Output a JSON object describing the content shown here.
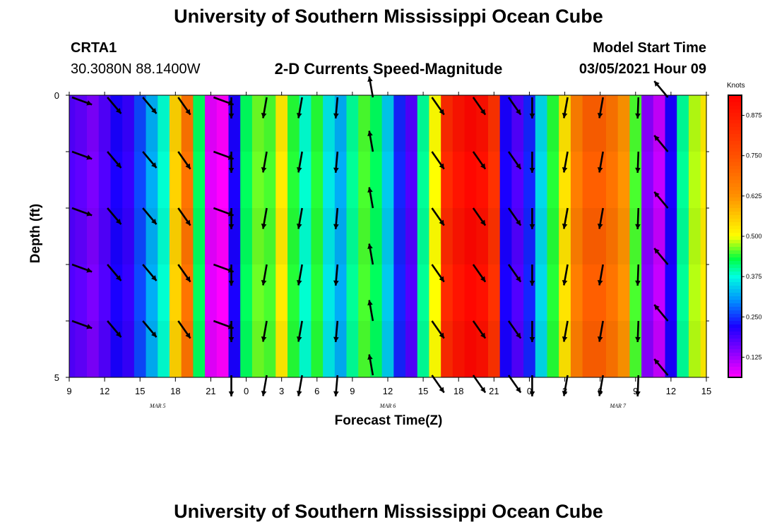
{
  "header": {
    "title_top": "University of Southern Mississippi Ocean Cube",
    "title_bottom": "University of Southern Mississippi Ocean Cube",
    "station_id": "CRTA1",
    "station_coords": "30.3080N 88.1400W",
    "chart_title": "2-D Currents Speed-Magnitude",
    "model_start_label": "Model Start Time",
    "model_start_value": "03/05/2021 Hour 09"
  },
  "chart_data": {
    "type": "heatmap",
    "title": "2-D Currents Speed-Magnitude",
    "xlabel": "Forecast Time(Z)",
    "ylabel": "Depth (ft)",
    "ylim": [
      0,
      5
    ],
    "y_ticks": [
      "0",
      "5"
    ],
    "x_tick_labels": [
      "9",
      "12",
      "15",
      "18",
      "21",
      "0",
      "3",
      "6",
      "9",
      "12",
      "15",
      "18",
      "21",
      "0",
      "3",
      "6",
      "9",
      "12",
      "15"
    ],
    "x_range_hours": [
      0,
      54
    ],
    "date_labels": [
      {
        "text": "MAR  5",
        "hour": 7.5
      },
      {
        "text": "MAR  6",
        "hour": 27
      },
      {
        "text": "MAR  7",
        "hour": 46.5
      }
    ],
    "speed_by_hour": [
      0.18,
      0.17,
      0.15,
      0.18,
      0.22,
      0.2,
      0.26,
      0.32,
      0.38,
      0.55,
      0.68,
      0.42,
      0.08,
      0.06,
      0.22,
      0.42,
      0.46,
      0.45,
      0.52,
      0.44,
      0.38,
      0.44,
      0.36,
      0.32,
      0.4,
      0.45,
      0.42,
      0.34,
      0.24,
      0.18,
      0.4,
      0.5,
      0.84,
      0.89,
      0.92,
      0.9,
      0.82,
      0.22,
      0.18,
      0.24,
      0.35,
      0.44,
      0.53,
      0.66,
      0.72,
      0.72,
      0.68,
      0.62,
      0.45,
      0.14,
      0.1,
      0.22,
      0.4,
      0.48,
      0.52
    ],
    "arrow_rows_depth": [
      0,
      1,
      2,
      3,
      4,
      5
    ],
    "arrow_directions_deg": [
      {
        "hour": 0,
        "dir": 250
      },
      {
        "hour": 3,
        "dir": 220
      },
      {
        "hour": 6,
        "dir": 220
      },
      {
        "hour": 9,
        "dir": 215
      },
      {
        "hour": 12,
        "dir": 250
      },
      {
        "hour": 13.5,
        "dir": 180
      },
      {
        "hour": 16.5,
        "dir": 170
      },
      {
        "hour": 19.5,
        "dir": 170
      },
      {
        "hour": 22.5,
        "dir": 175
      },
      {
        "hour": 25.5,
        "dir": 10
      },
      {
        "hour": 30.5,
        "dir": 215
      },
      {
        "hour": 34,
        "dir": 215
      },
      {
        "hour": 37,
        "dir": 215
      },
      {
        "hour": 39,
        "dir": 180
      },
      {
        "hour": 42,
        "dir": 170
      },
      {
        "hour": 45,
        "dir": 170
      },
      {
        "hour": 48,
        "dir": 178
      },
      {
        "hour": 50.5,
        "dir": 40
      }
    ],
    "arrow_depth_exceptions": {
      "top_row_short_hours": [
        13.5,
        16.5,
        19.5,
        22.5,
        39,
        42,
        45,
        48
      ]
    }
  },
  "colorbar": {
    "unit": "Knots",
    "min": 0.0625,
    "max": 0.9375,
    "tick_values": [
      0.125,
      0.25,
      0.375,
      0.5,
      0.625,
      0.75,
      0.875
    ],
    "tick_labels": [
      "0.125",
      "0.250",
      "0.375",
      "0.500",
      "0.625",
      "0.750",
      "0.875"
    ],
    "stops": [
      {
        "v": 0.0625,
        "c": "#ff00ff"
      },
      {
        "v": 0.14,
        "c": "#8a00ff"
      },
      {
        "v": 0.22,
        "c": "#1a00ff"
      },
      {
        "v": 0.3,
        "c": "#0090ff"
      },
      {
        "v": 0.375,
        "c": "#00ffe0"
      },
      {
        "v": 0.43,
        "c": "#00ff40"
      },
      {
        "v": 0.5,
        "c": "#ffff00"
      },
      {
        "v": 0.625,
        "c": "#ff9000"
      },
      {
        "v": 0.75,
        "c": "#ff5000"
      },
      {
        "v": 0.9375,
        "c": "#ff0000"
      }
    ]
  }
}
